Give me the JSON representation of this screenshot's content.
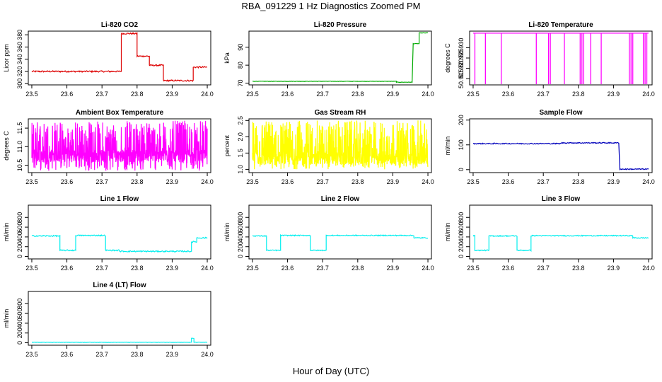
{
  "page": {
    "title": "RBA_091229  1 Hz Diagnostics Zoomed PM",
    "xlabel": "Hour of Day (UTC)"
  },
  "chart_data": [
    {
      "type": "line",
      "title": "Li-820 CO2",
      "ylabel": "Licor ppm",
      "color": "#dd0000",
      "xlim": [
        23.5,
        24.0
      ],
      "ylim": [
        298,
        386
      ],
      "xticks": [
        "23.5",
        "23.6",
        "23.7",
        "23.8",
        "23.9",
        "24.0"
      ],
      "yticks": [
        "300",
        "320",
        "340",
        "360",
        "380"
      ],
      "noise": 1.2,
      "segments": [
        [
          23.5,
          23.755,
          320
        ],
        [
          23.755,
          23.8,
          382
        ],
        [
          23.8,
          23.835,
          345
        ],
        [
          23.835,
          23.875,
          330
        ],
        [
          23.875,
          23.96,
          305
        ],
        [
          23.96,
          24.0,
          327
        ]
      ]
    },
    {
      "type": "line",
      "title": "Li-820 Pressure",
      "ylabel": "kPa",
      "color": "#00aa00",
      "xlim": [
        23.5,
        24.0
      ],
      "ylim": [
        69,
        99
      ],
      "xticks": [
        "23.5",
        "23.6",
        "23.7",
        "23.8",
        "23.9",
        "24.0"
      ],
      "yticks": [
        "70",
        "80",
        "90"
      ],
      "noise": 0.1,
      "segments": [
        [
          23.5,
          23.91,
          71
        ],
        [
          23.91,
          23.955,
          70.5
        ],
        [
          23.958,
          23.975,
          92
        ],
        [
          23.975,
          24.0,
          98
        ]
      ]
    },
    {
      "type": "line",
      "title": "Li-820 Temperature",
      "ylabel": "degrees C",
      "color": "#ff00ff",
      "xlim": [
        23.5,
        24.0
      ],
      "ylim": [
        50.912,
        50.938
      ],
      "xticks": [
        "23.5",
        "23.6",
        "23.7",
        "23.8",
        "23.9",
        "24.0"
      ],
      "yticks": [
        "50.915",
        "50.920",
        "50.925",
        "50.930"
      ],
      "noise": 0,
      "segments": [
        [
          23.5,
          24.0,
          50.937
        ]
      ],
      "drops": [
        23.505,
        23.535,
        23.58,
        23.68,
        23.715,
        23.72,
        23.76,
        23.805,
        23.81,
        23.815,
        23.835,
        23.865,
        23.945,
        23.95,
        23.955,
        23.985,
        23.99,
        23.995
      ]
    },
    {
      "type": "line",
      "title": "Ambient Box Temperature",
      "ylabel": "degrees C",
      "color": "#ff00ff",
      "xlim": [
        23.5,
        24.0
      ],
      "ylim": [
        10.3,
        11.75
      ],
      "xticks": [
        "23.5",
        "23.6",
        "23.7",
        "23.8",
        "23.9",
        "24.0"
      ],
      "yticks": [
        "10.5",
        "11.0",
        "11.5"
      ],
      "random": {
        "lo": 10.35,
        "hi": 11.7,
        "base": 10.75
      }
    },
    {
      "type": "line",
      "title": "Gas Stream RH",
      "ylabel": "percent",
      "color": "#ffff00",
      "xlim": [
        23.5,
        24.0
      ],
      "ylim": [
        0.9,
        2.55
      ],
      "xticks": [
        "23.5",
        "23.6",
        "23.7",
        "23.8",
        "23.9",
        "24.0"
      ],
      "yticks": [
        "1.0",
        "1.5",
        "2.0",
        "2.5"
      ],
      "random": {
        "lo": 1.0,
        "hi": 2.5,
        "base": 1.3
      }
    },
    {
      "type": "line",
      "title": "Sample Flow",
      "ylabel": "ml/min",
      "color": "#0000bb",
      "xlim": [
        23.5,
        24.0
      ],
      "ylim": [
        -12,
        205
      ],
      "xticks": [
        "23.5",
        "23.6",
        "23.7",
        "23.8",
        "23.9",
        "24.0"
      ],
      "yticks": [
        "0",
        "100",
        "200"
      ],
      "noise": 2,
      "segments": [
        [
          23.5,
          23.75,
          105
        ],
        [
          23.75,
          23.915,
          108
        ],
        [
          23.918,
          24.0,
          2
        ]
      ]
    },
    {
      "type": "line",
      "title": "Line 1 Flow",
      "ylabel": "ml/min",
      "color": "#00eeee",
      "xlim": [
        23.5,
        24.0
      ],
      "ylim": [
        -50,
        1050
      ],
      "xticks": [
        "23.5",
        "23.6",
        "23.7",
        "23.8",
        "23.9",
        "24.0"
      ],
      "yticks": [
        "0",
        "200",
        "400",
        "600",
        "800"
      ],
      "noise": 12,
      "segments": [
        [
          23.5,
          23.58,
          420
        ],
        [
          23.58,
          23.625,
          125
        ],
        [
          23.625,
          23.71,
          430
        ],
        [
          23.71,
          23.75,
          125
        ],
        [
          23.75,
          23.955,
          105
        ],
        [
          23.955,
          23.97,
          300
        ],
        [
          23.97,
          24.0,
          380
        ]
      ]
    },
    {
      "type": "line",
      "title": "Line 2 Flow",
      "ylabel": "ml/min",
      "color": "#00eeee",
      "xlim": [
        23.5,
        24.0
      ],
      "ylim": [
        -50,
        1050
      ],
      "xticks": [
        "23.5",
        "23.6",
        "23.7",
        "23.8",
        "23.9",
        "24.0"
      ],
      "yticks": [
        "0",
        "200",
        "400",
        "600",
        "800"
      ],
      "noise": 10,
      "segments": [
        [
          23.5,
          23.54,
          420
        ],
        [
          23.54,
          23.58,
          125
        ],
        [
          23.58,
          23.665,
          430
        ],
        [
          23.665,
          23.71,
          125
        ],
        [
          23.71,
          23.96,
          430
        ],
        [
          23.96,
          24.0,
          380
        ]
      ]
    },
    {
      "type": "line",
      "title": "Line 3 Flow",
      "ylabel": "ml/min",
      "color": "#00eeee",
      "xlim": [
        23.5,
        24.0
      ],
      "ylim": [
        -50,
        1050
      ],
      "xticks": [
        "23.5",
        "23.6",
        "23.7",
        "23.8",
        "23.9",
        "24.0"
      ],
      "yticks": [
        "0",
        "200",
        "400",
        "600",
        "800"
      ],
      "noise": 10,
      "segments": [
        [
          23.5,
          23.505,
          420
        ],
        [
          23.505,
          23.545,
          125
        ],
        [
          23.545,
          23.625,
          420
        ],
        [
          23.625,
          23.665,
          125
        ],
        [
          23.665,
          23.955,
          425
        ],
        [
          23.955,
          24.0,
          380
        ]
      ]
    },
    {
      "type": "line",
      "title": "Line 4 (LT) Flow",
      "ylabel": "ml/min",
      "color": "#00eeee",
      "xlim": [
        23.5,
        24.0
      ],
      "ylim": [
        -50,
        1050
      ],
      "xticks": [
        "23.5",
        "23.6",
        "23.7",
        "23.8",
        "23.9",
        "24.0"
      ],
      "yticks": [
        "0",
        "200",
        "400",
        "600",
        "800"
      ],
      "noise": 4,
      "segments": [
        [
          23.5,
          23.955,
          10
        ],
        [
          23.955,
          23.962,
          90
        ],
        [
          23.962,
          24.0,
          10
        ]
      ]
    }
  ]
}
